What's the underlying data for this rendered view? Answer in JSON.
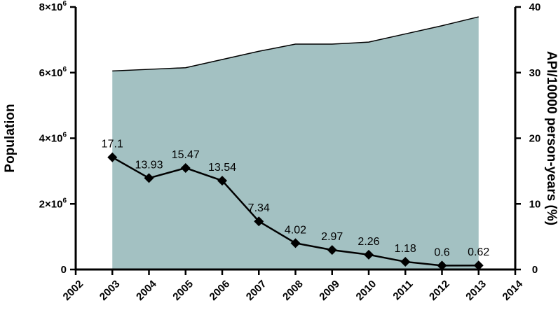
{
  "chart_data": {
    "type": "area",
    "colors": {
      "area_fill": "#a3c1c2",
      "line": "#000000"
    },
    "x": [
      2003,
      2004,
      2005,
      2006,
      2007,
      2008,
      2009,
      2010,
      2011,
      2012,
      2013
    ],
    "xlim": [
      2002,
      2014
    ],
    "x_ticks": [
      "2002",
      "2003",
      "2004",
      "2005",
      "2006",
      "2007",
      "2008",
      "2009",
      "2010",
      "2011",
      "2012",
      "2013",
      "2014"
    ],
    "y_left": {
      "label": "Population",
      "ylim": [
        0,
        8000000
      ],
      "ticks": [
        {
          "value": 0,
          "base": "0",
          "exp": ""
        },
        {
          "value": 2000000,
          "base": "2×10",
          "exp": "6"
        },
        {
          "value": 4000000,
          "base": "4×10",
          "exp": "6"
        },
        {
          "value": 6000000,
          "base": "6×10",
          "exp": "6"
        },
        {
          "value": 8000000,
          "base": "8×10",
          "exp": "6"
        }
      ]
    },
    "y_right": {
      "label": "API/10000 person-years (%)",
      "ylim": [
        0,
        40
      ],
      "ticks": [
        "0",
        "10",
        "20",
        "30",
        "40"
      ]
    },
    "series": [
      {
        "type": "area",
        "axis": "left",
        "values": [
          6050000,
          6100000,
          6150000,
          6400000,
          6650000,
          6870000,
          6870000,
          6930000,
          7180000,
          7430000,
          7700000
        ]
      },
      {
        "type": "line",
        "axis": "right",
        "marker": "diamond",
        "values": [
          17.1,
          13.93,
          15.47,
          13.54,
          7.34,
          4.02,
          2.97,
          2.26,
          1.18,
          0.6,
          0.62
        ],
        "labels": [
          "17.1",
          "13.93",
          "15.47",
          "13.54",
          "7.34",
          "4.02",
          "2.97",
          "2.26",
          "1.18",
          "0.6",
          "0.62"
        ]
      }
    ],
    "grid": false
  }
}
